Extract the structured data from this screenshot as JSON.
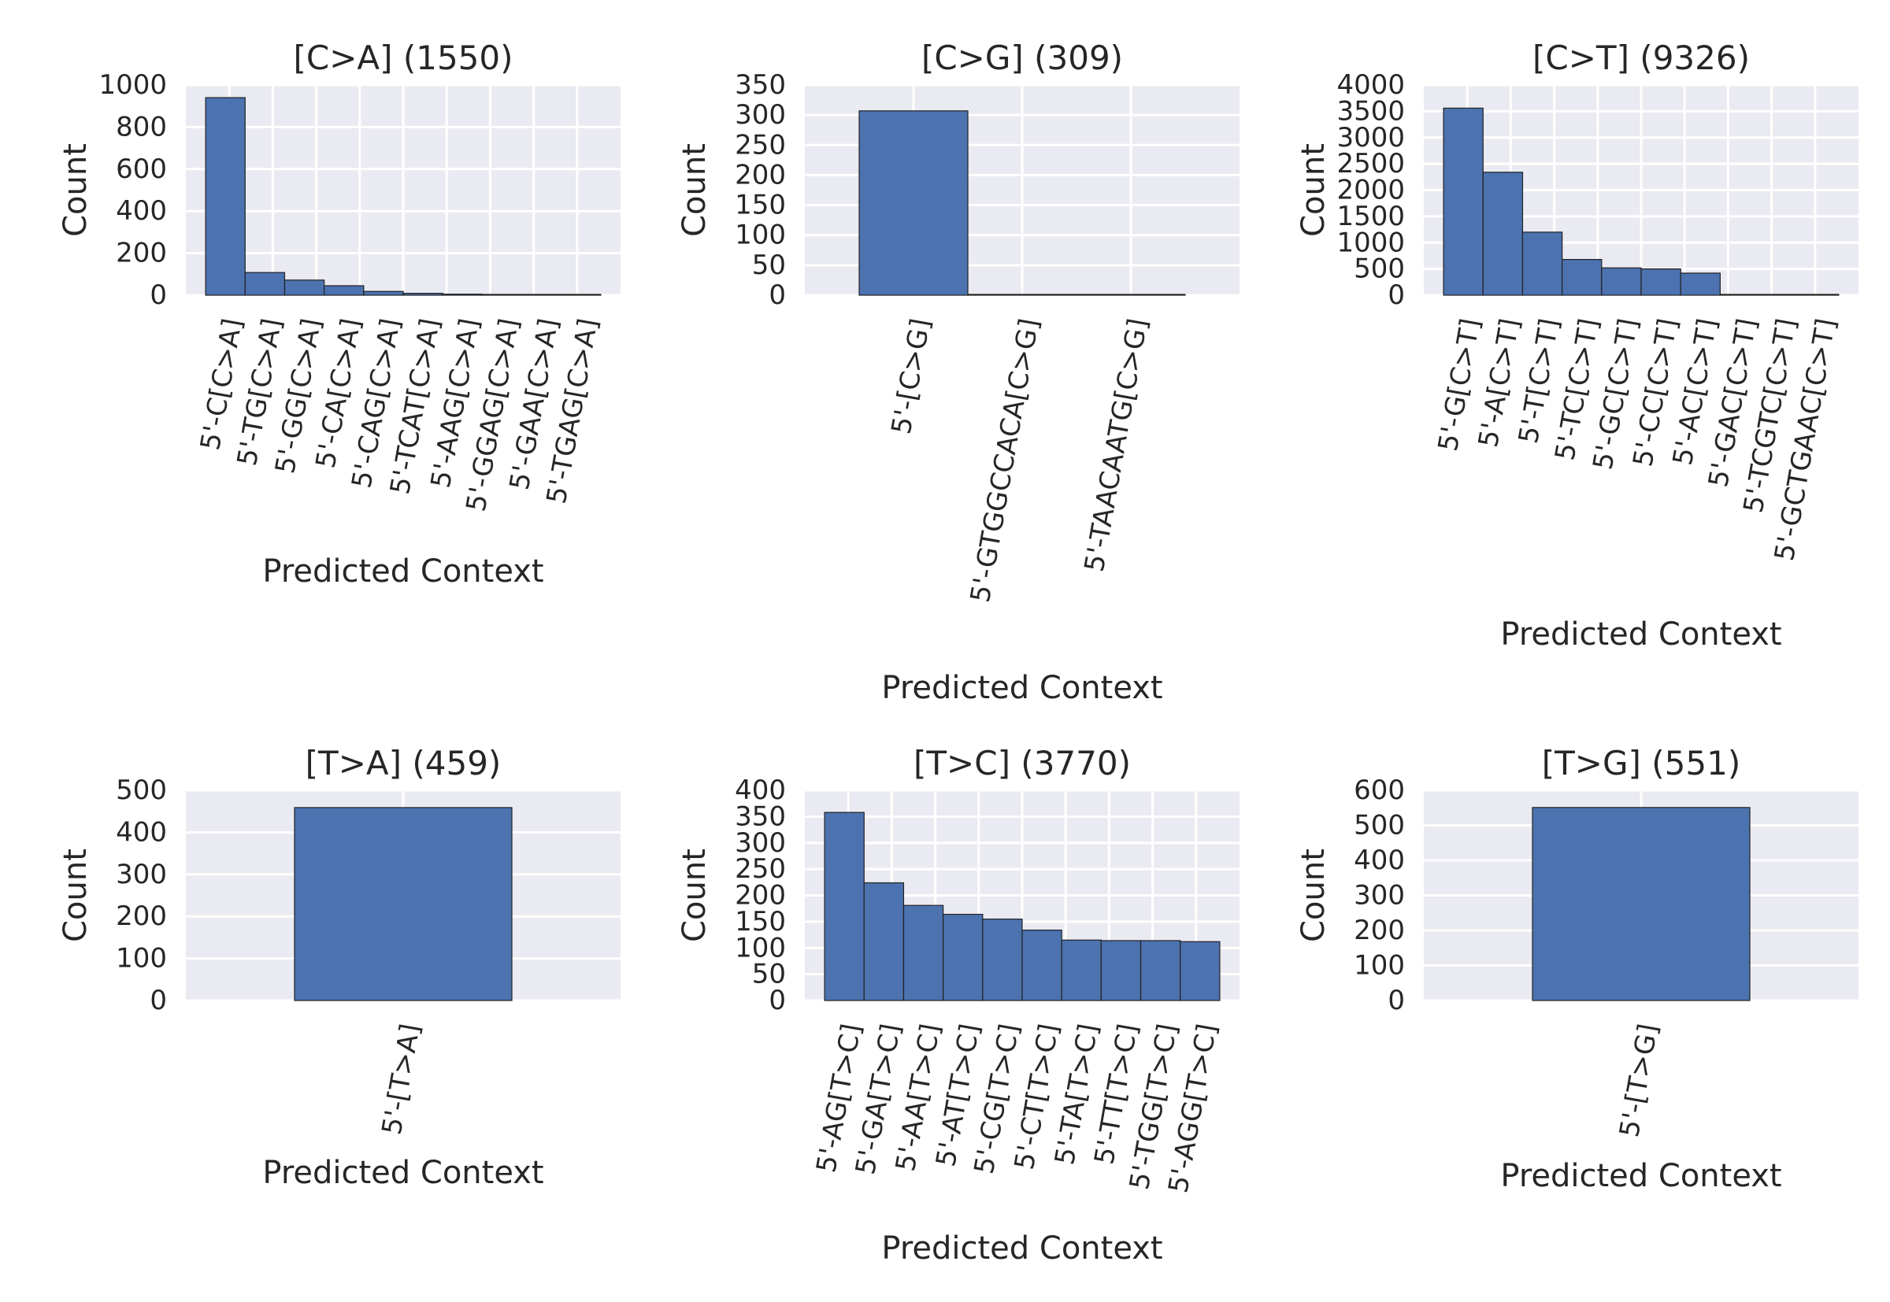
{
  "chart_data": [
    {
      "type": "bar",
      "title": "[C>A] (1550)",
      "xlabel": "Predicted Context",
      "ylabel": "Count",
      "ylim": [
        0,
        1000
      ],
      "yticks": [
        0,
        200,
        400,
        600,
        800,
        1000
      ],
      "categories": [
        "5'-C[C>A]",
        "5'-TG[C>A]",
        "5'-GG[C>A]",
        "5'-CA[C>A]",
        "5'-CAG[C>A]",
        "5'-TCAT[C>A]",
        "5'-AAG[C>A]",
        "5'-GGAG[C>A]",
        "5'-GAA[C>A]",
        "5'-TGAG[C>A]"
      ],
      "values": [
        940,
        108,
        72,
        45,
        18,
        9,
        5,
        3,
        3,
        2
      ],
      "grid": true,
      "color": "#4c72b0"
    },
    {
      "type": "bar",
      "title": "[C>G] (309)",
      "xlabel": "Predicted Context",
      "ylabel": "Count",
      "ylim": [
        0,
        350
      ],
      "yticks": [
        0,
        50,
        100,
        150,
        200,
        250,
        300,
        350
      ],
      "categories": [
        "5'-[C>G]",
        "5'-GTGGCCACA[C>G]",
        "5'-TAACAATG[C>G]"
      ],
      "values": [
        307,
        1,
        1
      ],
      "grid": true,
      "color": "#4c72b0"
    },
    {
      "type": "bar",
      "title": "[C>T] (9326)",
      "xlabel": "Predicted Context",
      "ylabel": "Count",
      "ylim": [
        0,
        4000
      ],
      "yticks": [
        0,
        500,
        1000,
        1500,
        2000,
        2500,
        3000,
        3500,
        4000
      ],
      "categories": [
        "5'-G[C>T]",
        "5'-A[C>T]",
        "5'-T[C>T]",
        "5'-TC[C>T]",
        "5'-GC[C>T]",
        "5'-CC[C>T]",
        "5'-AC[C>T]",
        "5'-GAC[C>T]",
        "5'-TCGTC[C>T]",
        "5'-GCTGAAC[C>T]"
      ],
      "values": [
        3560,
        2340,
        1200,
        680,
        520,
        500,
        420,
        3,
        2,
        1
      ],
      "grid": true,
      "color": "#4c72b0"
    },
    {
      "type": "bar",
      "title": "[T>A] (459)",
      "xlabel": "Predicted Context",
      "ylabel": "Count",
      "ylim": [
        0,
        500
      ],
      "yticks": [
        0,
        100,
        200,
        300,
        400,
        500
      ],
      "categories": [
        "5'-[T>A]"
      ],
      "values": [
        459
      ],
      "grid": true,
      "color": "#4c72b0"
    },
    {
      "type": "bar",
      "title": "[T>C] (3770)",
      "xlabel": "Predicted Context",
      "ylabel": "Count",
      "ylim": [
        0,
        400
      ],
      "yticks": [
        0,
        50,
        100,
        150,
        200,
        250,
        300,
        350,
        400
      ],
      "categories": [
        "5'-AG[T>C]",
        "5'-GA[T>C]",
        "5'-AA[T>C]",
        "5'-AT[T>C]",
        "5'-CG[T>C]",
        "5'-CT[T>C]",
        "5'-TA[T>C]",
        "5'-TT[T>C]",
        "5'-TGG[T>C]",
        "5'-AGG[T>C]"
      ],
      "values": [
        358,
        224,
        181,
        164,
        155,
        134,
        115,
        114,
        114,
        112
      ],
      "grid": true,
      "color": "#4c72b0"
    },
    {
      "type": "bar",
      "title": "[T>G] (551)",
      "xlabel": "Predicted Context",
      "ylabel": "Count",
      "ylim": [
        0,
        600
      ],
      "yticks": [
        0,
        100,
        200,
        300,
        400,
        500,
        600
      ],
      "categories": [
        "5'-[T>G]"
      ],
      "values": [
        551
      ],
      "grid": true,
      "color": "#4c72b0"
    }
  ]
}
